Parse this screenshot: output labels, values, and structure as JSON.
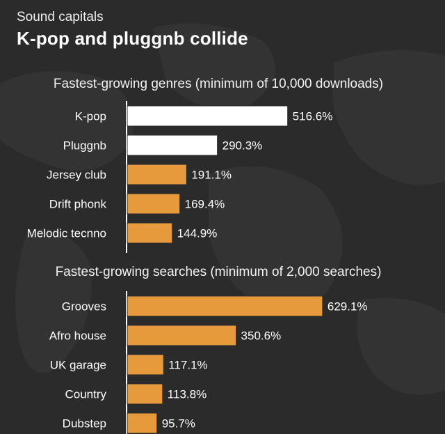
{
  "kicker": "Sound capitals",
  "headline": "K-pop and pluggnb collide",
  "colors": {
    "background": "#2b2b2b",
    "highlight": "#ffffff",
    "bar": "#e69a3c",
    "axis": "#ffffff"
  },
  "chart_data": [
    {
      "type": "bar",
      "orientation": "horizontal",
      "title": "Fastest-growing genres (minimum of 10,000 downloads)",
      "unit": "%",
      "categories": [
        "K-pop",
        "Pluggnb",
        "Jersey club",
        "Drift phonk",
        "Melodic tecnno"
      ],
      "values": [
        516.6,
        290.3,
        191.1,
        169.4,
        144.9
      ],
      "value_labels": [
        "516.6%",
        "290.3%",
        "191.1%",
        "169.4%",
        "144.9%"
      ],
      "highlighted": [
        true,
        true,
        false,
        false,
        false
      ],
      "xlim": [
        0,
        700
      ],
      "grid": false
    },
    {
      "type": "bar",
      "orientation": "horizontal",
      "title": "Fastest-growing searches (minimum of 2,000 searches)",
      "unit": "%",
      "categories": [
        "Grooves",
        "Afro house",
        "UK garage",
        "Country",
        "Dubstep"
      ],
      "values": [
        629.1,
        350.6,
        117.1,
        113.8,
        95.7
      ],
      "value_labels": [
        "629.1%",
        "350.6%",
        "117.1%",
        "113.8%",
        "95.7%"
      ],
      "highlighted": [
        false,
        false,
        false,
        false,
        false
      ],
      "xlim": [
        0,
        700
      ],
      "grid": false
    }
  ]
}
